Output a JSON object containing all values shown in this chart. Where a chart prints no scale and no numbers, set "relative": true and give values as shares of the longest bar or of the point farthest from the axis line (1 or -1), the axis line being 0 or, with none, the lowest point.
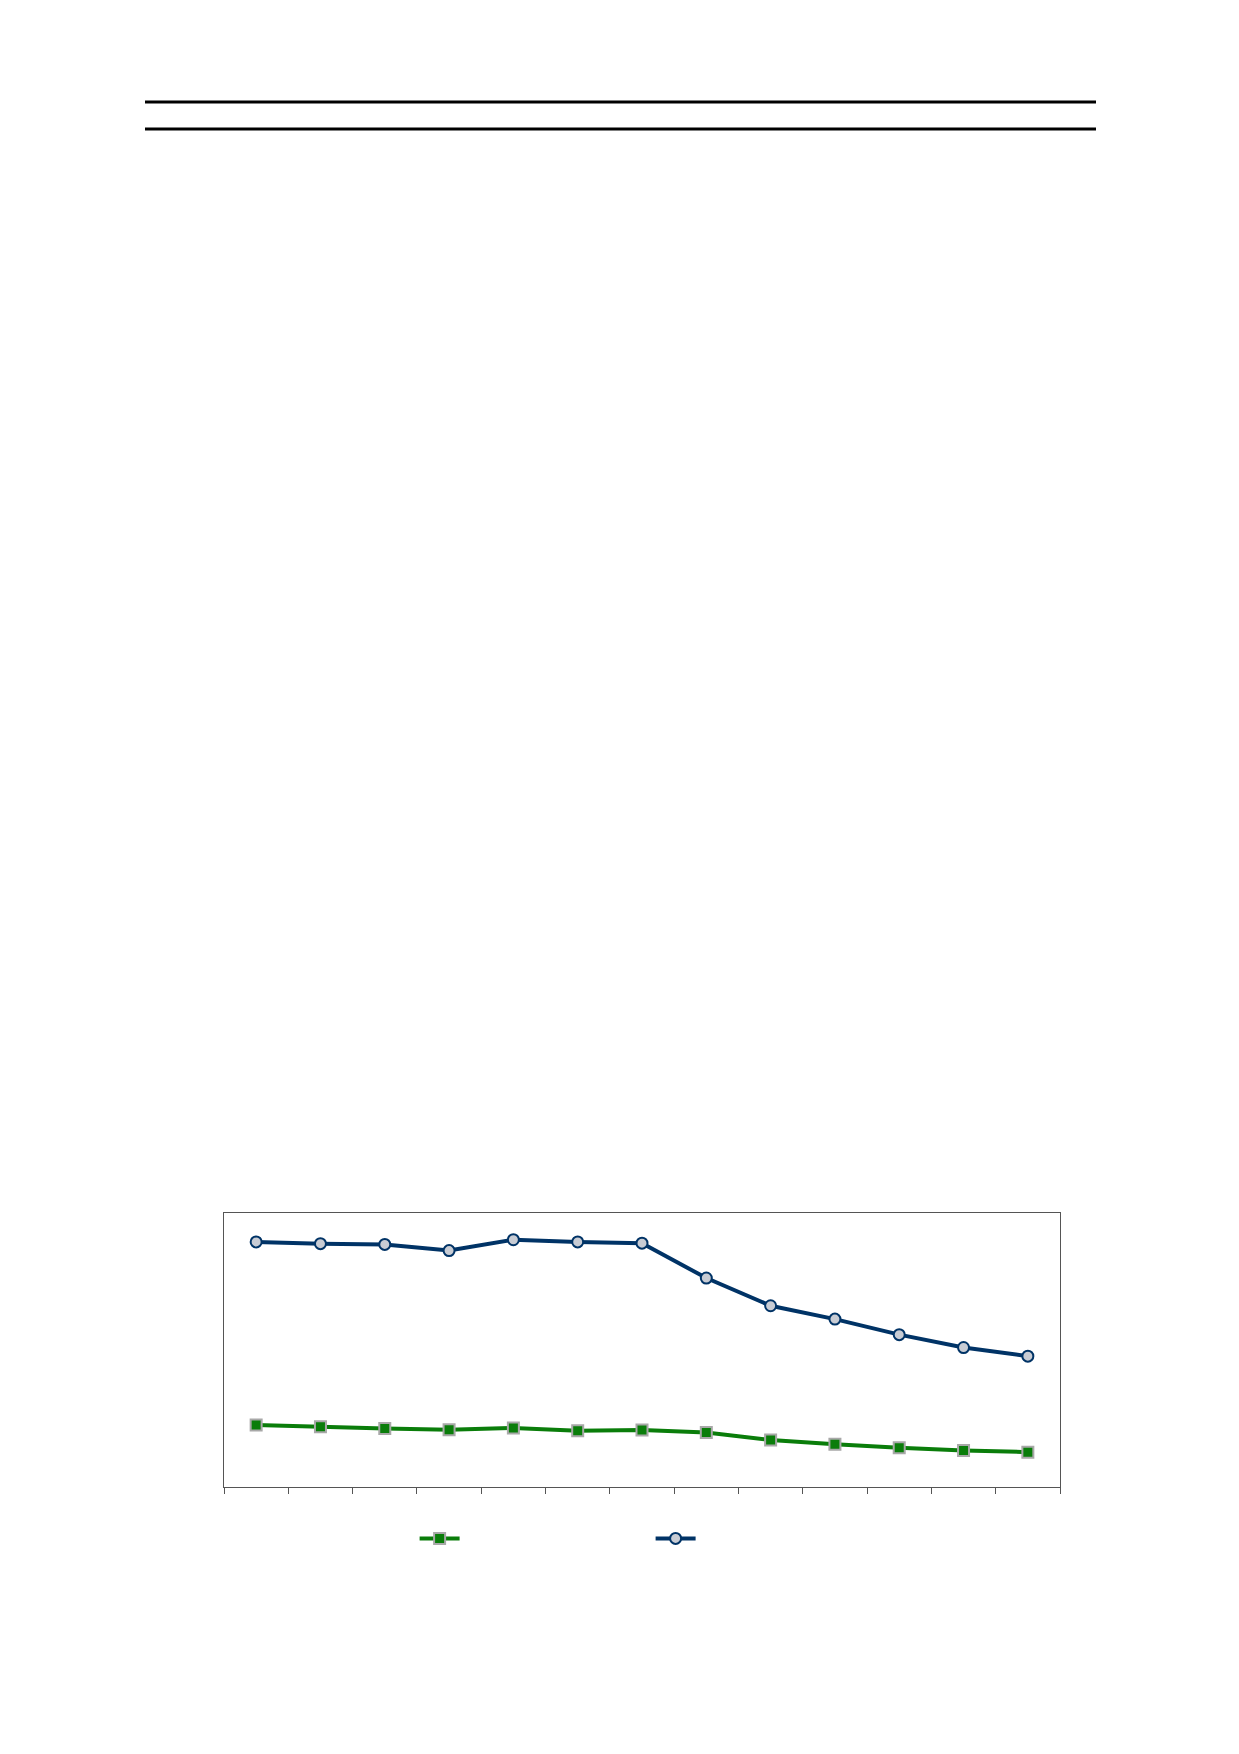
{
  "chart_data": {
    "type": "line",
    "relative": true,
    "categories": [
      null,
      null,
      null,
      null,
      null,
      null,
      null,
      null,
      null,
      null,
      null,
      null,
      null
    ],
    "series": [
      {
        "color": "#0a7d0a",
        "marker": "square",
        "values": [
          0.251,
          0.244,
          0.237,
          0.232,
          0.239,
          0.227,
          0.23,
          0.22,
          0.19,
          0.173,
          0.159,
          0.148,
          0.141
        ]
      },
      {
        "color": "#003366",
        "marker": "circle",
        "values": [
          0.991,
          0.984,
          0.981,
          0.956,
          1.0,
          0.991,
          0.986,
          0.845,
          0.733,
          0.679,
          0.616,
          0.564,
          0.529
        ]
      }
    ],
    "line_style": "solid"
  }
}
